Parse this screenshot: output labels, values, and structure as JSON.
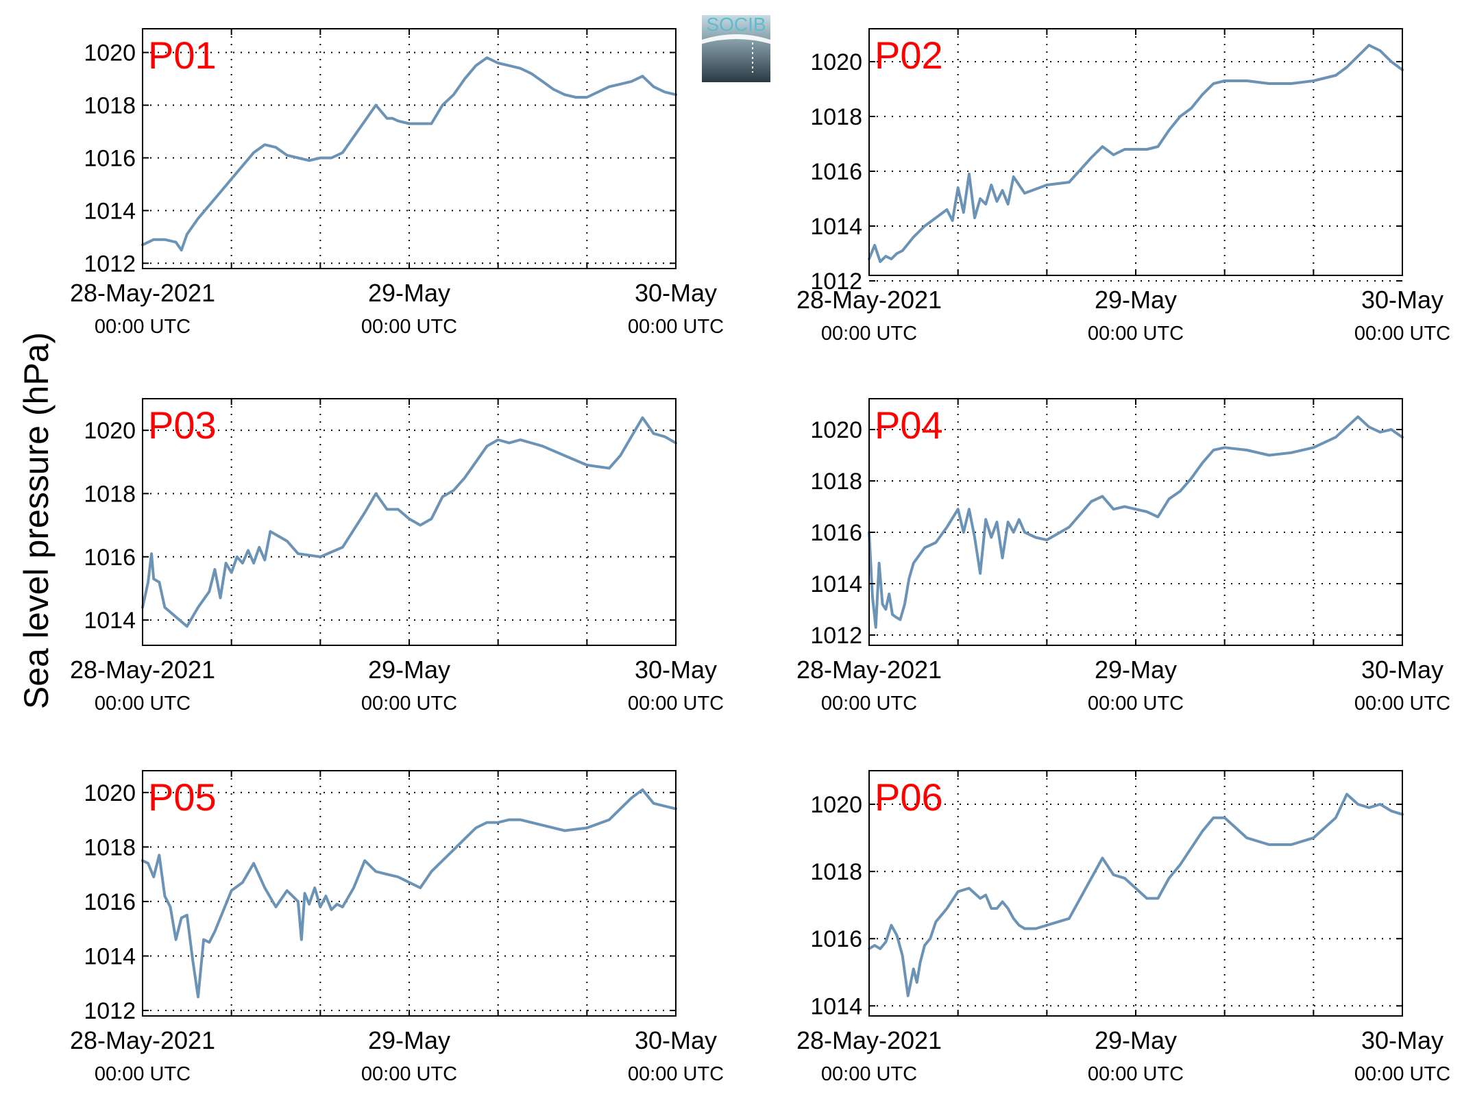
{
  "ylabel": "Sea level pressure (hPa)",
  "logo": {
    "text": "SOCIB"
  },
  "colors": {
    "line": "#6b93b6",
    "title": "#ff0000",
    "axis": "#000000",
    "grid": "#000000"
  },
  "chart_data": [
    {
      "type": "line",
      "title": "P01",
      "ylim": [
        1011.8,
        1020.9
      ],
      "yticks": [
        1012,
        1014,
        1016,
        1018,
        1020
      ],
      "ytick_labels": [
        "1012",
        "1014",
        "1016",
        "1018",
        "1020"
      ],
      "xlim": [
        0,
        48
      ],
      "xticks": [
        0,
        24,
        48
      ],
      "xtick_labels": [
        "28-May-2021",
        "29-May",
        "30-May"
      ],
      "xtick_sublabels": [
        "00:00 UTC",
        "00:00 UTC",
        "00:00 UTC"
      ],
      "grid": true,
      "series": [
        {
          "x": [
            0,
            1,
            2,
            3,
            3.5,
            4,
            5,
            6,
            7,
            8,
            10,
            11,
            12,
            13,
            14,
            15,
            16,
            17,
            18,
            19,
            20,
            21,
            22,
            22.5,
            23,
            24,
            25,
            26,
            27,
            28,
            29,
            30,
            31,
            32,
            33,
            34,
            35,
            36,
            37,
            38,
            39,
            40,
            41,
            42,
            43,
            44,
            45,
            46,
            47,
            48
          ],
          "y": [
            1012.7,
            1012.9,
            1012.9,
            1012.8,
            1012.5,
            1013.1,
            1013.7,
            1014.2,
            1014.7,
            1015.2,
            1016.2,
            1016.5,
            1016.4,
            1016.1,
            1016.0,
            1015.9,
            1016.0,
            1016.0,
            1016.2,
            1016.8,
            1017.4,
            1018.0,
            1017.5,
            1017.5,
            1017.4,
            1017.3,
            1017.3,
            1017.3,
            1018.0,
            1018.4,
            1019.0,
            1019.5,
            1019.8,
            1019.6,
            1019.5,
            1019.4,
            1019.2,
            1018.9,
            1018.6,
            1018.4,
            1018.3,
            1018.3,
            1018.5,
            1018.7,
            1018.8,
            1018.9,
            1019.1,
            1018.7,
            1018.5,
            1018.4
          ]
        }
      ]
    },
    {
      "type": "line",
      "title": "P02",
      "ylim": [
        1012.2,
        1021.2
      ],
      "yticks": [
        1012,
        1014,
        1016,
        1018,
        1020
      ],
      "ytick_labels": [
        "1012",
        "1014",
        "1016",
        "1018",
        "1020"
      ],
      "xlim": [
        0,
        48
      ],
      "xticks": [
        0,
        24,
        48
      ],
      "xtick_labels": [
        "28-May-2021",
        "29-May",
        "30-May"
      ],
      "xtick_sublabels": [
        "00:00 UTC",
        "00:00 UTC",
        "00:00 UTC"
      ],
      "grid": true,
      "series": [
        {
          "x": [
            0,
            0.5,
            1,
            1.5,
            2,
            2.5,
            3,
            4,
            5,
            6,
            7,
            7.5,
            8,
            8.5,
            9,
            9.5,
            10,
            10.5,
            11,
            11.5,
            12,
            12.5,
            13,
            14,
            16,
            18,
            20,
            21,
            22,
            23,
            24,
            25,
            26,
            27,
            28,
            29,
            30,
            31,
            32,
            34,
            36,
            38,
            40,
            42,
            43,
            44,
            45,
            46,
            47,
            48
          ],
          "y": [
            1012.8,
            1013.3,
            1012.7,
            1012.9,
            1012.8,
            1013.0,
            1013.1,
            1013.6,
            1014.0,
            1014.3,
            1014.6,
            1014.2,
            1015.4,
            1014.5,
            1015.9,
            1014.3,
            1015.0,
            1014.8,
            1015.5,
            1014.9,
            1015.3,
            1014.8,
            1015.8,
            1015.2,
            1015.5,
            1015.6,
            1016.5,
            1016.9,
            1016.6,
            1016.8,
            1016.8,
            1016.8,
            1016.9,
            1017.5,
            1018.0,
            1018.3,
            1018.8,
            1019.2,
            1019.3,
            1019.3,
            1019.2,
            1019.2,
            1019.3,
            1019.5,
            1019.8,
            1020.2,
            1020.6,
            1020.4,
            1020.0,
            1019.7
          ]
        }
      ]
    },
    {
      "type": "line",
      "title": "P03",
      "ylim": [
        1013.2,
        1021.0
      ],
      "yticks": [
        1014,
        1016,
        1018,
        1020
      ],
      "ytick_labels": [
        "1014",
        "1016",
        "1018",
        "1020"
      ],
      "xlim": [
        0,
        48
      ],
      "xticks": [
        0,
        24,
        48
      ],
      "xtick_labels": [
        "28-May-2021",
        "29-May",
        "30-May"
      ],
      "xtick_sublabels": [
        "00:00 UTC",
        "00:00 UTC",
        "00:00 UTC"
      ],
      "grid": true,
      "series": [
        {
          "x": [
            0,
            0.5,
            0.8,
            1.0,
            1.5,
            2,
            3,
            4,
            5,
            6,
            6.5,
            7,
            7.5,
            8,
            8.5,
            9,
            9.5,
            10,
            10.5,
            11,
            11.5,
            12,
            13,
            14,
            16,
            18,
            20,
            21,
            22,
            23,
            24,
            25,
            26,
            27,
            28,
            29,
            30,
            31,
            32,
            33,
            34,
            36,
            38,
            40,
            42,
            43,
            44,
            45,
            46,
            47,
            48
          ],
          "y": [
            1014.4,
            1015.2,
            1016.1,
            1015.3,
            1015.2,
            1014.4,
            1014.1,
            1013.8,
            1014.4,
            1014.9,
            1015.6,
            1014.7,
            1015.8,
            1015.5,
            1016.0,
            1015.8,
            1016.2,
            1015.8,
            1016.3,
            1015.9,
            1016.8,
            1016.7,
            1016.5,
            1016.1,
            1016.0,
            1016.3,
            1017.4,
            1018.0,
            1017.5,
            1017.5,
            1017.2,
            1017.0,
            1017.2,
            1017.9,
            1018.1,
            1018.5,
            1019.0,
            1019.5,
            1019.7,
            1019.6,
            1019.7,
            1019.5,
            1019.2,
            1018.9,
            1018.8,
            1019.2,
            1019.8,
            1020.4,
            1019.9,
            1019.8,
            1019.6
          ]
        }
      ]
    },
    {
      "type": "line",
      "title": "P04",
      "ylim": [
        1011.6,
        1021.2
      ],
      "yticks": [
        1012,
        1014,
        1016,
        1018,
        1020
      ],
      "ytick_labels": [
        "1012",
        "1014",
        "1016",
        "1018",
        "1020"
      ],
      "xlim": [
        0,
        48
      ],
      "xticks": [
        0,
        24,
        48
      ],
      "xtick_labels": [
        "28-May-2021",
        "29-May",
        "30-May"
      ],
      "xtick_sublabels": [
        "00:00 UTC",
        "00:00 UTC",
        "00:00 UTC"
      ],
      "grid": true,
      "series": [
        {
          "x": [
            0,
            0.3,
            0.6,
            0.9,
            1.2,
            1.5,
            1.8,
            2.1,
            2.4,
            2.8,
            3.2,
            3.6,
            4,
            5,
            6,
            7,
            8,
            8.5,
            9,
            9.5,
            10,
            10.5,
            11,
            11.5,
            12,
            12.5,
            13,
            13.5,
            14,
            15,
            16,
            18,
            20,
            21,
            22,
            23,
            24,
            25,
            26,
            27,
            28,
            29,
            30,
            31,
            32,
            34,
            36,
            38,
            40,
            42,
            43,
            44,
            45,
            46,
            47,
            48
          ],
          "y": [
            1016.0,
            1013.5,
            1012.3,
            1014.8,
            1013.2,
            1013.0,
            1013.6,
            1012.8,
            1012.7,
            1012.6,
            1013.2,
            1014.2,
            1014.8,
            1015.4,
            1015.6,
            1016.2,
            1016.9,
            1016.0,
            1016.9,
            1015.8,
            1014.4,
            1016.5,
            1015.8,
            1016.4,
            1015.0,
            1016.4,
            1016.0,
            1016.5,
            1016.0,
            1015.8,
            1015.7,
            1016.2,
            1017.2,
            1017.4,
            1016.9,
            1017.0,
            1016.9,
            1016.8,
            1016.6,
            1017.3,
            1017.6,
            1018.1,
            1018.7,
            1019.2,
            1019.3,
            1019.2,
            1019.0,
            1019.1,
            1019.3,
            1019.7,
            1020.1,
            1020.5,
            1020.1,
            1019.9,
            1020.0,
            1019.7
          ]
        }
      ]
    },
    {
      "type": "line",
      "title": "P05",
      "ylim": [
        1011.8,
        1020.8
      ],
      "yticks": [
        1012,
        1014,
        1016,
        1018,
        1020
      ],
      "ytick_labels": [
        "1012",
        "1014",
        "1016",
        "1018",
        "1020"
      ],
      "xlim": [
        0,
        48
      ],
      "xticks": [
        0,
        24,
        48
      ],
      "xtick_labels": [
        "28-May-2021",
        "29-May",
        "30-May"
      ],
      "xtick_sublabels": [
        "00:00 UTC",
        "00:00 UTC",
        "00:00 UTC"
      ],
      "grid": true,
      "series": [
        {
          "x": [
            0,
            0.5,
            1,
            1.5,
            2,
            2.5,
            3,
            3.5,
            4,
            4.5,
            5,
            5.5,
            6,
            6.5,
            7,
            8,
            9,
            10,
            11,
            12,
            13,
            14,
            14.3,
            14.6,
            15,
            15.5,
            16,
            16.5,
            17,
            17.5,
            18,
            19,
            20,
            21,
            22,
            23,
            24,
            25,
            26,
            27,
            28,
            29,
            30,
            31,
            32,
            33,
            34,
            36,
            38,
            40,
            42,
            43,
            44,
            45,
            46,
            47,
            48
          ],
          "y": [
            1017.5,
            1017.4,
            1016.9,
            1017.7,
            1016.2,
            1015.8,
            1014.6,
            1015.4,
            1015.5,
            1013.9,
            1012.5,
            1014.6,
            1014.5,
            1014.9,
            1015.4,
            1016.4,
            1016.7,
            1017.4,
            1016.5,
            1015.8,
            1016.4,
            1016.0,
            1014.6,
            1016.3,
            1015.9,
            1016.5,
            1015.8,
            1016.2,
            1015.7,
            1015.9,
            1015.8,
            1016.5,
            1017.5,
            1017.1,
            1017.0,
            1016.9,
            1016.7,
            1016.5,
            1017.1,
            1017.5,
            1017.9,
            1018.3,
            1018.7,
            1018.9,
            1018.9,
            1019.0,
            1019.0,
            1018.8,
            1018.6,
            1018.7,
            1019.0,
            1019.4,
            1019.8,
            1020.1,
            1019.6,
            1019.5,
            1019.4
          ]
        }
      ]
    },
    {
      "type": "line",
      "title": "P06",
      "ylim": [
        1013.7,
        1021.0
      ],
      "yticks": [
        1014,
        1016,
        1018,
        1020
      ],
      "ytick_labels": [
        "1014",
        "1016",
        "1018",
        "1020"
      ],
      "xlim": [
        0,
        48
      ],
      "xticks": [
        0,
        24,
        48
      ],
      "xtick_labels": [
        "28-May-2021",
        "29-May",
        "30-May"
      ],
      "xtick_sublabels": [
        "00:00 UTC",
        "00:00 UTC",
        "00:00 UTC"
      ],
      "grid": true,
      "series": [
        {
          "x": [
            0,
            0.5,
            1,
            1.5,
            2,
            2.5,
            3,
            3.5,
            4,
            4.3,
            4.6,
            5,
            5.5,
            6,
            7,
            8,
            9,
            10,
            10.5,
            11,
            11.5,
            12,
            12.5,
            13,
            13.5,
            14,
            15,
            16,
            18,
            20,
            21,
            22,
            23,
            24,
            25,
            26,
            27,
            28,
            29,
            30,
            31,
            32,
            33,
            34,
            35,
            36,
            38,
            40,
            42,
            43,
            44,
            45,
            46,
            47,
            48
          ],
          "y": [
            1015.7,
            1015.8,
            1015.7,
            1015.9,
            1016.4,
            1016.1,
            1015.5,
            1014.3,
            1015.1,
            1014.7,
            1015.3,
            1015.8,
            1016.0,
            1016.5,
            1016.9,
            1017.4,
            1017.5,
            1017.2,
            1017.3,
            1016.9,
            1016.9,
            1017.1,
            1016.9,
            1016.6,
            1016.4,
            1016.3,
            1016.3,
            1016.4,
            1016.6,
            1017.8,
            1018.4,
            1017.9,
            1017.8,
            1017.5,
            1017.2,
            1017.2,
            1017.8,
            1018.2,
            1018.7,
            1019.2,
            1019.6,
            1019.6,
            1019.3,
            1019.0,
            1018.9,
            1018.8,
            1018.8,
            1019.0,
            1019.6,
            1020.3,
            1020.0,
            1019.9,
            1020.0,
            1019.8,
            1019.7
          ]
        }
      ]
    }
  ]
}
